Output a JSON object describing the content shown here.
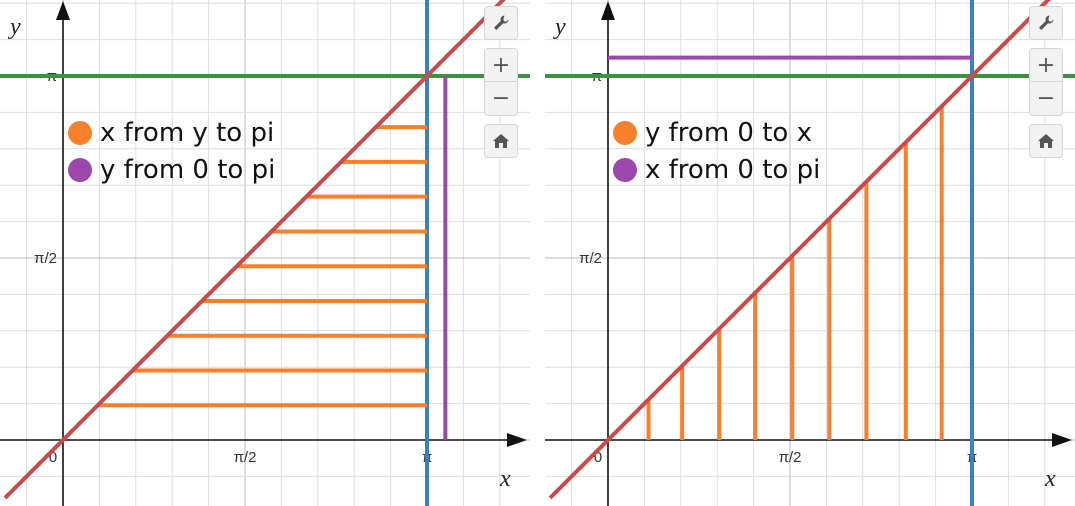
{
  "colors": {
    "orange": "#f7812a",
    "purple": "#9b47ab",
    "red": "#c94b4b",
    "green": "#3c9142",
    "blue": "#3f7fc0",
    "grid_minor": "#dedede",
    "grid_major": "#bbbbbb",
    "axis": "#111111"
  },
  "toolbar": {
    "settings_icon": "wrench-icon",
    "zoom_in_label": "+",
    "zoom_out_label": "−",
    "home_icon": "home-icon"
  },
  "panels": [
    {
      "legend": [
        {
          "label": "x from y to pi",
          "color": "#f7812a"
        },
        {
          "label": "y from 0 to pi",
          "color": "#9b47ab"
        }
      ],
      "x_ticks": [
        "0",
        "π/2",
        "π"
      ],
      "y_ticks": [
        "π/2",
        "π"
      ],
      "x_axis_label": "x",
      "y_axis_label": "y",
      "orange_segments": {
        "orientation": "horizontal",
        "y_values": [
          0.3,
          0.6,
          0.9,
          1.2,
          1.5,
          1.8,
          2.1,
          2.4,
          2.7
        ],
        "from": "line y=x",
        "to": 3.1416
      },
      "purple_segment": {
        "orientation": "vertical",
        "at_x": 3.3,
        "from": 0,
        "to": 3.1416
      }
    },
    {
      "legend": [
        {
          "label": "y from 0 to x",
          "color": "#f7812a"
        },
        {
          "label": "x from 0 to pi",
          "color": "#9b47ab"
        }
      ],
      "x_ticks": [
        "0",
        "π/2",
        "π"
      ],
      "y_ticks": [
        "π/2",
        "π"
      ],
      "x_axis_label": "x",
      "y_axis_label": "y",
      "orange_segments": {
        "orientation": "vertical",
        "x_values": [
          0.35,
          0.64,
          0.96,
          1.27,
          1.59,
          1.91,
          2.23,
          2.57,
          2.88
        ],
        "from": 0,
        "to": "line y=x"
      },
      "purple_segment": {
        "orientation": "horizontal",
        "at_y": 3.3,
        "from": 0,
        "to": 3.1416
      }
    }
  ],
  "lines": {
    "diagonal": "y = x",
    "vertical": "x = π",
    "horizontal": "y = π"
  }
}
